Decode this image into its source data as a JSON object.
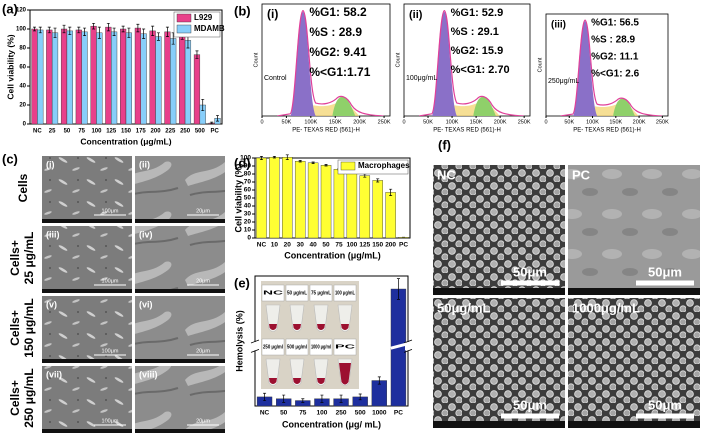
{
  "chart_data": [
    {
      "type": "bar",
      "panel_label": "(a)",
      "ylabel": "Cell viability (%)",
      "xlabel": "Concentration (μg/mL)",
      "categories": [
        "NC",
        "25",
        "50",
        "75",
        "100",
        "125",
        "150",
        "175",
        "200",
        "225",
        "250",
        "500",
        "PC"
      ],
      "series": [
        {
          "name": "L929",
          "color": "#e8408a",
          "values": [
            100,
            99,
            100,
            99,
            103,
            102,
            100,
            101,
            98,
            97,
            95,
            73,
            1
          ],
          "errors": [
            2,
            3,
            4,
            3,
            3,
            4,
            3,
            4,
            5,
            5,
            6,
            4,
            1
          ]
        },
        {
          "name": "MDAMB",
          "color": "#87cefa",
          "values": [
            99,
            96,
            98,
            97,
            96,
            97,
            96,
            95,
            92,
            90,
            88,
            20,
            6
          ],
          "errors": [
            3,
            5,
            4,
            4,
            6,
            4,
            5,
            5,
            4,
            6,
            8,
            6,
            3
          ]
        }
      ],
      "ylim": [
        0,
        120
      ],
      "yticks": [
        0,
        20,
        40,
        60,
        80,
        100,
        120
      ]
    },
    {
      "type": "cytometry",
      "panel_label": "(b)",
      "roman": "(i)",
      "sample": "Control",
      "ylabel": "Count",
      "xlabel": "PE- TEXAS RED (561)-H",
      "stats": [
        "%G1: 58.2",
        "%S  : 28.9",
        "%G2: 9.41",
        "%<G1:1.71"
      ],
      "xlim": [
        0,
        262144
      ],
      "xticks": [
        0,
        {
          "value": 50000,
          "label": "50K"
        },
        {
          "value": 100000,
          "label": "100K"
        },
        {
          "value": 150000,
          "label": "150K"
        },
        {
          "value": 200000,
          "label": "200K"
        },
        {
          "value": 250000,
          "label": "250K"
        }
      ]
    },
    {
      "type": "cytometry",
      "roman": "(ii)",
      "sample": "100μg/mL",
      "ylabel": "Count",
      "xlabel": "PE- TEXAS RED (561)-H",
      "stats": [
        "%G1: 52.9",
        "%S  : 29.1",
        "%G2: 15.9",
        "%<G1: 2.70"
      ],
      "xlim": [
        0,
        262144
      ],
      "xticks": [
        0,
        {
          "value": 50000,
          "label": "50K"
        },
        {
          "value": 100000,
          "label": "100K"
        },
        {
          "value": 150000,
          "label": "150K"
        },
        {
          "value": 200000,
          "label": "200K"
        },
        {
          "value": 250000,
          "label": "250K"
        }
      ]
    },
    {
      "type": "cytometry",
      "roman": "(iii)",
      "sample": "250μg/mL",
      "ylabel": "Count",
      "xlabel": "PE- TEXAS RED (561)-H",
      "stats": [
        "%G1: 56.5",
        "%S   : 28.9",
        "%G2: 11.1",
        "%<G1: 2.6"
      ],
      "xlim": [
        0,
        262144
      ],
      "xticks": [
        0,
        {
          "value": 50000,
          "label": "50K"
        },
        {
          "value": 100000,
          "label": "100K"
        },
        {
          "value": 150000,
          "label": "150K"
        },
        {
          "value": 200000,
          "label": "200K"
        },
        {
          "value": 250000,
          "label": "250K"
        }
      ]
    },
    {
      "type": "bar",
      "panel_label": "(d)",
      "ylabel": "Cell viability (%)",
      "xlabel": "Concentration (μg/mL)",
      "categories": [
        "NC",
        "10",
        "20",
        "30",
        "40",
        "50",
        "75",
        "100",
        "125",
        "150",
        "200",
        "PC"
      ],
      "series": [
        {
          "name": "Macrophages",
          "color": "#ffff33",
          "values": [
            100,
            101,
            101,
            96,
            94,
            91,
            86,
            82,
            78,
            72,
            57,
            1
          ],
          "errors": [
            2,
            1,
            3,
            1,
            1,
            1,
            1,
            1,
            2,
            2,
            4,
            0
          ]
        }
      ],
      "ylim": [
        0,
        100
      ],
      "yticks": [
        0,
        10,
        20,
        30,
        40,
        50,
        60,
        70,
        80,
        90,
        100
      ]
    },
    {
      "type": "bar",
      "panel_label": "(e)",
      "ylabel": "Hemolysis (%)",
      "xlabel": "Concentration (μg/ mL)",
      "categories": [
        "NC",
        "50",
        "75",
        "100",
        "250",
        "500",
        "1000",
        "PC"
      ],
      "values": [
        2.5,
        2,
        1.5,
        2,
        2,
        2.5,
        7,
        100
      ],
      "errors": [
        1,
        1,
        0.5,
        1,
        1,
        0.8,
        1,
        8
      ],
      "color": "#1e2f9e",
      "ylim": [
        0,
        110
      ],
      "break": [
        15,
        60
      ],
      "vial_labels": [
        "NC",
        "50 μg/mL",
        "75 μg/mL",
        "100 μg/mL",
        "250 μg/ml",
        "500 μg/ml",
        "1000 μg/ml",
        "PC"
      ]
    }
  ],
  "sem_cells": {
    "panel_label": "(c)",
    "row_labels": [
      [
        "Cells"
      ],
      [
        "Cells+",
        "25 μg/mL"
      ],
      [
        "Cells+",
        "150 μg/mL"
      ],
      [
        "Cells+",
        "250 μg/mL"
      ]
    ],
    "tiles": [
      {
        "label": "(i)",
        "scale": "100μm"
      },
      {
        "label": "(ii)",
        "scale": "20μm"
      },
      {
        "label": "(iii)",
        "scale": "100μm"
      },
      {
        "label": "(iv)",
        "scale": "20μm"
      },
      {
        "label": "(v)",
        "scale": "100μm"
      },
      {
        "label": "(vi)",
        "scale": "20μm"
      },
      {
        "label": "(vii)",
        "scale": "100μm"
      },
      {
        "label": "(viii)",
        "scale": "20μm"
      }
    ]
  },
  "sem_rbc": {
    "panel_label": "(f)",
    "tiles": [
      {
        "label": "NC",
        "scale": "50μm"
      },
      {
        "label": "PC",
        "scale": "50μm"
      },
      {
        "label": "50μg/mL",
        "scale": "50μm"
      },
      {
        "label": "1000μg/mL",
        "scale": "50μm"
      }
    ]
  }
}
